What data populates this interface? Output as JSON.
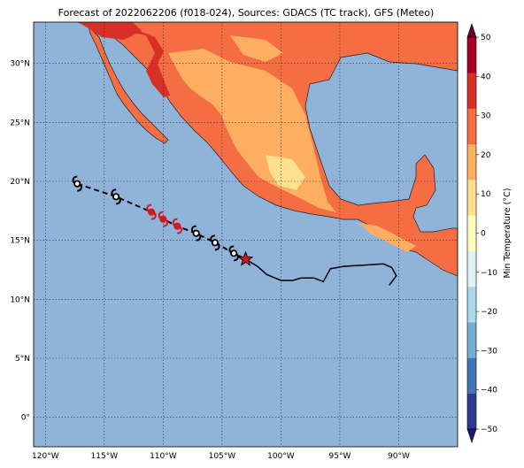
{
  "title": "Forecast of 2022062206 (f018-024), Sources: GDACS (TC track), GFS (Meteo)",
  "lat_labels": [
    "30°N",
    "25°N",
    "20°N",
    "15°N",
    "10°N",
    "5°N",
    "0°"
  ],
  "lat_values": [
    30,
    25,
    20,
    15,
    10,
    5,
    0
  ],
  "lon_labels": [
    "120°W",
    "115°W",
    "110°W",
    "105°W",
    "100°W",
    "95°W",
    "90°W"
  ],
  "lon_values": [
    -120,
    -115,
    -110,
    -105,
    -100,
    -95,
    -90
  ],
  "lat_range": [
    -2.5,
    33.5
  ],
  "lon_range": [
    -121,
    -85
  ],
  "colorbar": {
    "label": "Min Temperature (°C)",
    "ticks": [
      "50",
      "40",
      "30",
      "20",
      "10",
      "0",
      "−10",
      "−20",
      "−30",
      "−40",
      "−50"
    ],
    "tick_values": [
      50,
      40,
      30,
      20,
      10,
      0,
      -10,
      -20,
      -30,
      -40,
      -50
    ],
    "colors": [
      "#313695",
      "#4575b4",
      "#74add1",
      "#abd9e9",
      "#e0f3f8",
      "#ffffbf",
      "#fee090",
      "#fdae61",
      "#f46d43",
      "#d73027",
      "#a50026"
    ]
  },
  "colors": {
    "ocean": "#8fb3d9",
    "land_warm": "#f46d43",
    "land_hot": "#d73027",
    "land_mild": "#fdae61",
    "land_cool": "#fee090",
    "land_cold": "#ffffbf",
    "storm_current": "#d7191c",
    "track": "#000000"
  },
  "forecast_track": [
    {
      "lon": -117.3,
      "lat": 19.8,
      "highlight": false
    },
    {
      "lon": -114.0,
      "lat": 18.7,
      "highlight": false
    },
    {
      "lon": -111.0,
      "lat": 17.4,
      "highlight": true
    },
    {
      "lon": -110.0,
      "lat": 16.8,
      "highlight": true
    },
    {
      "lon": -108.8,
      "lat": 16.2,
      "highlight": true
    },
    {
      "lon": -107.2,
      "lat": 15.6,
      "highlight": false
    },
    {
      "lon": -105.6,
      "lat": 14.8,
      "highlight": false
    },
    {
      "lon": -104.0,
      "lat": 13.9,
      "highlight": false
    }
  ],
  "current_position": {
    "lon": -103.0,
    "lat": 13.4
  },
  "past_track": [
    [
      -103.0,
      13.4
    ],
    [
      -102.0,
      12.8
    ],
    [
      -101.2,
      12.1
    ],
    [
      -100.0,
      11.6
    ],
    [
      -99.0,
      11.6
    ],
    [
      -98.3,
      11.8
    ],
    [
      -97.2,
      11.8
    ],
    [
      -96.4,
      11.5
    ],
    [
      -95.8,
      12.6
    ],
    [
      -94.6,
      12.8
    ],
    [
      -93.0,
      12.9
    ],
    [
      -91.3,
      13.0
    ],
    [
      -90.6,
      12.7
    ],
    [
      -90.2,
      12.0
    ],
    [
      -90.8,
      11.2
    ]
  ]
}
